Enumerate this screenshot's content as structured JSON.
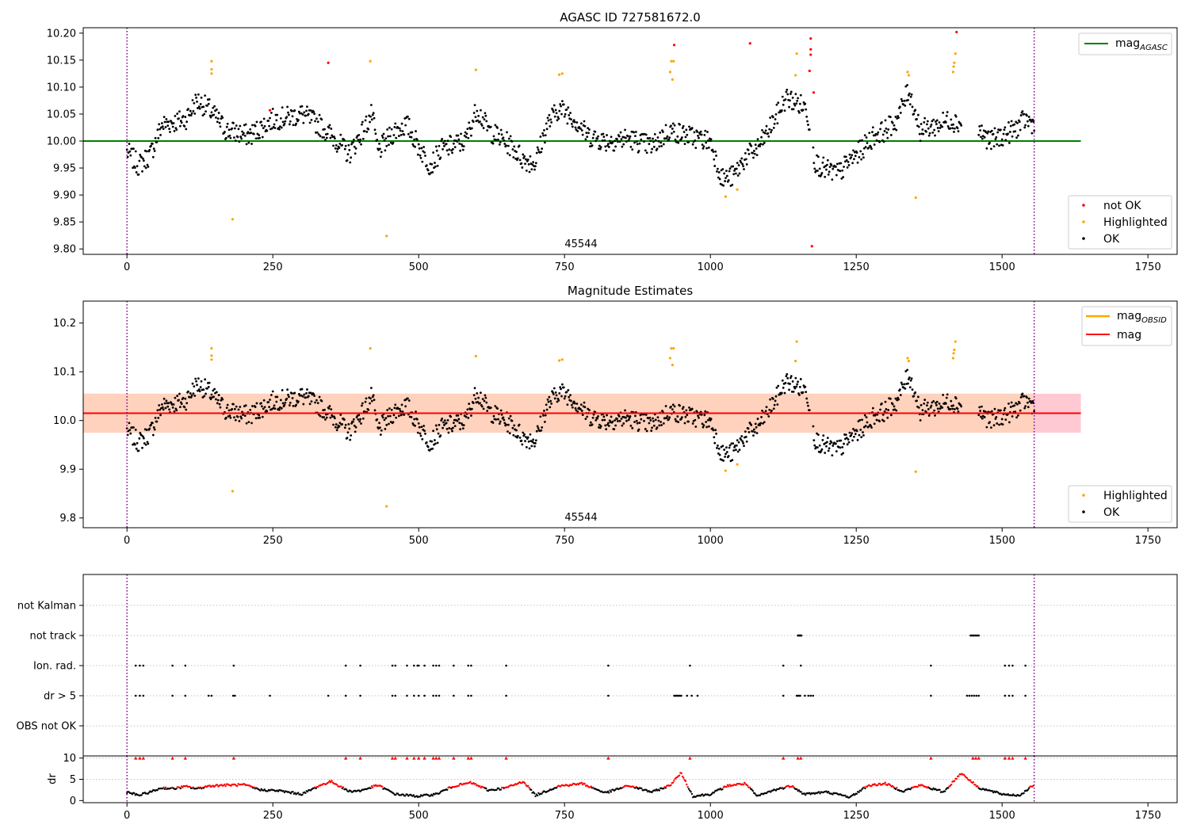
{
  "figure": {
    "title": "AGASC ID 727581672.0",
    "obsid_label": "45544"
  },
  "chart_data": [
    {
      "type": "scatter",
      "title": "AGASC ID 727581672.0",
      "xlim": [
        -75,
        1800
      ],
      "ylim": [
        9.79,
        10.21
      ],
      "x_ticks": [
        0,
        250,
        500,
        750,
        1000,
        1250,
        1500,
        1750
      ],
      "y_ticks": [
        9.8,
        9.85,
        9.9,
        9.95,
        10.0,
        10.05,
        10.1,
        10.15,
        10.2
      ],
      "y_tick_labels": [
        "9.80",
        "9.85",
        "9.90",
        "9.95",
        "10.00",
        "10.05",
        "10.10",
        "10.15",
        "10.20"
      ],
      "reference_lines": [
        {
          "name": "mag",
          "subscript": "AGASC",
          "y": 10.0,
          "color": "#008000",
          "x": [
            -75,
            1635
          ]
        }
      ],
      "obs_boundaries": [
        0,
        1555
      ],
      "legend": [
        "not OK",
        "Highlighted",
        "OK"
      ],
      "ok_points": "smooth black light curve of ~1500 samples between about 9.92 and 10.11",
      "not_ok_points": [
        {
          "x": 245,
          "y": 10.057
        },
        {
          "x": 345,
          "y": 10.145
        },
        {
          "x": 938,
          "y": 10.178
        },
        {
          "x": 1068,
          "y": 10.181
        },
        {
          "x": 1172,
          "y": 10.19
        },
        {
          "x": 1172,
          "y": 10.17
        },
        {
          "x": 1172,
          "y": 10.16
        },
        {
          "x": 1177,
          "y": 10.09
        },
        {
          "x": 1174,
          "y": 9.805
        },
        {
          "x": 1170,
          "y": 10.13
        },
        {
          "x": 1422,
          "y": 10.202
        }
      ],
      "highlighted_points": [
        {
          "x": 145,
          "y": 10.148
        },
        {
          "x": 145,
          "y": 10.133
        },
        {
          "x": 145,
          "y": 10.125
        },
        {
          "x": 181,
          "y": 9.855
        },
        {
          "x": 417,
          "y": 10.148
        },
        {
          "x": 445,
          "y": 9.824
        },
        {
          "x": 598,
          "y": 10.132
        },
        {
          "x": 741,
          "y": 10.123
        },
        {
          "x": 746,
          "y": 10.125
        },
        {
          "x": 933,
          "y": 10.148
        },
        {
          "x": 937,
          "y": 10.148
        },
        {
          "x": 931,
          "y": 10.128
        },
        {
          "x": 935,
          "y": 10.114
        },
        {
          "x": 1026,
          "y": 9.897
        },
        {
          "x": 1046,
          "y": 9.91
        },
        {
          "x": 1148,
          "y": 10.162
        },
        {
          "x": 1146,
          "y": 10.122
        },
        {
          "x": 1338,
          "y": 10.128
        },
        {
          "x": 1340,
          "y": 10.122
        },
        {
          "x": 1352,
          "y": 9.895
        },
        {
          "x": 1420,
          "y": 10.162
        },
        {
          "x": 1418,
          "y": 10.145
        },
        {
          "x": 1417,
          "y": 10.138
        },
        {
          "x": 1416,
          "y": 10.128
        }
      ]
    },
    {
      "type": "scatter",
      "title": "Magnitude Estimates",
      "xlim": [
        -75,
        1800
      ],
      "ylim": [
        9.78,
        10.245
      ],
      "x_ticks": [
        0,
        250,
        500,
        750,
        1000,
        1250,
        1500,
        1750
      ],
      "y_ticks": [
        9.8,
        9.9,
        10.0,
        10.1,
        10.2
      ],
      "y_tick_labels": [
        "9.8",
        "9.9",
        "10.0",
        "10.1",
        "10.2"
      ],
      "reference_lines": [
        {
          "name": "mag",
          "subscript": "OBSID",
          "y": 10.015,
          "color": "#ffa500",
          "x": [
            -75,
            1635
          ]
        },
        {
          "name": "mag",
          "subscript": "",
          "y": 10.015,
          "color": "#ff0000",
          "x": [
            -75,
            1635
          ]
        }
      ],
      "bands": [
        {
          "y": [
            9.975,
            10.055
          ],
          "x": [
            -75,
            1635
          ],
          "color": "#ffc0cb"
        },
        {
          "y": [
            9.975,
            10.055
          ],
          "x": [
            -75,
            1555
          ],
          "color": "#ffd3b8"
        }
      ],
      "obs_boundaries": [
        0,
        1555
      ],
      "legend": [
        "Highlighted",
        "OK"
      ],
      "ok_points": "same light curve as upper panel",
      "highlighted_points": "same as upper panel highlighted points"
    },
    {
      "type": "scatter",
      "title": "",
      "xlim": [
        -75,
        1800
      ],
      "categories": [
        "not Kalman",
        "not track",
        "Ion. rad.",
        "dr > 5",
        "OBS not OK"
      ],
      "flag_points": {
        "not track": [
          1150,
          1151,
          1152,
          1153,
          1154,
          1155,
          1156,
          1446,
          1448,
          1450,
          1452,
          1454,
          1456,
          1458,
          1460
        ],
        "Ion. rad.": [
          15,
          22,
          28,
          78,
          100,
          183,
          375,
          400,
          455,
          460,
          480,
          492,
          498,
          500,
          510,
          525,
          530,
          535,
          560,
          585,
          590,
          650,
          825,
          965,
          1125,
          1155,
          1378,
          1505,
          1512,
          1518,
          1540
        ],
        "dr > 5": [
          15,
          22,
          28,
          78,
          100,
          140,
          145,
          182,
          185,
          245,
          345,
          375,
          400,
          455,
          460,
          480,
          492,
          500,
          510,
          525,
          530,
          535,
          560,
          585,
          590,
          650,
          825,
          938,
          940,
          942,
          944,
          946,
          948,
          950,
          960,
          968,
          978,
          1125,
          1148,
          1150,
          1152,
          1154,
          1162,
          1168,
          1172,
          1176,
          1378,
          1440,
          1444,
          1448,
          1452,
          1456,
          1460,
          1505,
          1512,
          1518,
          1540
        ]
      }
    },
    {
      "type": "scatter",
      "title": "",
      "ylabel": "dr",
      "xlim": [
        -75,
        1800
      ],
      "ylim": [
        -0.5,
        10.5
      ],
      "y_ticks": [
        0,
        5,
        10
      ],
      "x_ticks": [
        0,
        250,
        500,
        750,
        1000,
        1250,
        1500,
        1750
      ],
      "dr_threshold": 3.0,
      "dr_points": "black where dr < 3, red where dr > 3; red triangles at dr = 10 for clipped values",
      "clip_markers": [
        15,
        22,
        28,
        78,
        100,
        183,
        375,
        400,
        455,
        460,
        480,
        492,
        500,
        510,
        525,
        530,
        535,
        560,
        585,
        590,
        650,
        825,
        965,
        1125,
        1150,
        1155,
        1378,
        1450,
        1455,
        1460,
        1505,
        1512,
        1518,
        1540
      ]
    }
  ]
}
